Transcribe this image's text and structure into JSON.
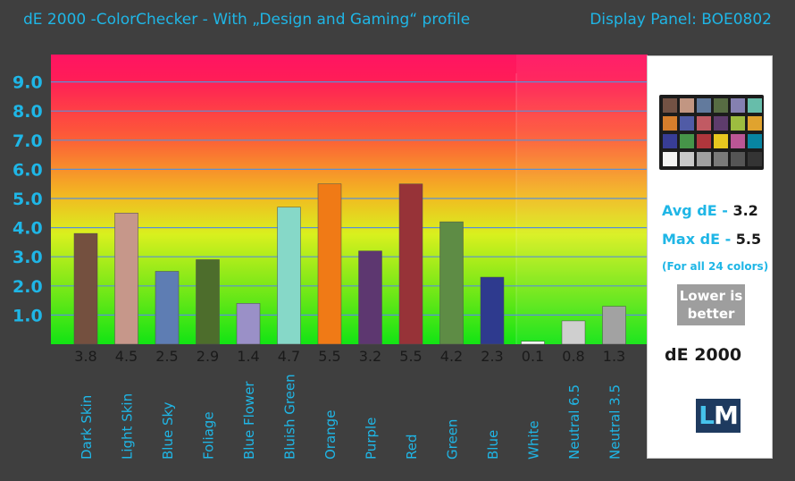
{
  "header": {
    "title": "dE 2000 -ColorChecker - With „Design and Gaming“ profile",
    "panel": "Display Panel: BOE0802"
  },
  "chart_data": {
    "type": "bar",
    "categories": [
      "Dark Skin",
      "Light Skin",
      "Blue Sky",
      "Foliage",
      "Blue Flower",
      "Bluish Green",
      "Orange",
      "Purple",
      "Red",
      "Green",
      "Blue",
      "White",
      "Neutral 6.5",
      "Neutral 3.5"
    ],
    "values": [
      3.8,
      4.5,
      2.5,
      2.9,
      1.4,
      4.7,
      5.5,
      3.2,
      5.5,
      4.2,
      2.3,
      0.1,
      0.8,
      1.3
    ],
    "value_labels": [
      "3.8",
      "4.5",
      "2.5",
      "2.9",
      "1.4",
      "4.7",
      "5.5",
      "3.2",
      "5.5",
      "4.2",
      "2.3",
      "0.1",
      "0.8",
      "1.3"
    ],
    "bar_colors": [
      "#74503f",
      "#c6978a",
      "#5e7db3",
      "#4d6d2c",
      "#9a90c7",
      "#86d8c8",
      "#f07a16",
      "#5d3770",
      "#973338",
      "#5e8c45",
      "#2e3a8e",
      "#f3f3f3",
      "#cfcfcf",
      "#a2a2a2"
    ],
    "yticks": [
      "1.0",
      "2.0",
      "3.0",
      "4.0",
      "5.0",
      "6.0",
      "7.0",
      "8.0",
      "9.0"
    ],
    "ylim": [
      0,
      10
    ],
    "grid": true,
    "xlabel": "",
    "ylabel": ""
  },
  "side": {
    "avg_label": "Avg dE - ",
    "avg_value": "3.2",
    "max_label": "Max dE - ",
    "max_value": "5.5",
    "note": "(For all 24 colors)",
    "lower_line1": "Lower is",
    "lower_line2": "better",
    "metric": "dE 2000",
    "logo": "LM",
    "checker_colors": [
      "#735244",
      "#c29682",
      "#627a9d",
      "#576c43",
      "#8580b1",
      "#67bdaa",
      "#d67e2c",
      "#505ba6",
      "#c15a63",
      "#5e3c6c",
      "#9dbc40",
      "#e0a32e",
      "#383d96",
      "#469449",
      "#af363c",
      "#e7c71f",
      "#bb5695",
      "#0885a1",
      "#f3f3f2",
      "#c8c8c8",
      "#a0a0a0",
      "#7a7a79",
      "#555555",
      "#343434"
    ]
  },
  "colors": {
    "accent": "#1fb6e6",
    "background": "#3f3f3f"
  }
}
